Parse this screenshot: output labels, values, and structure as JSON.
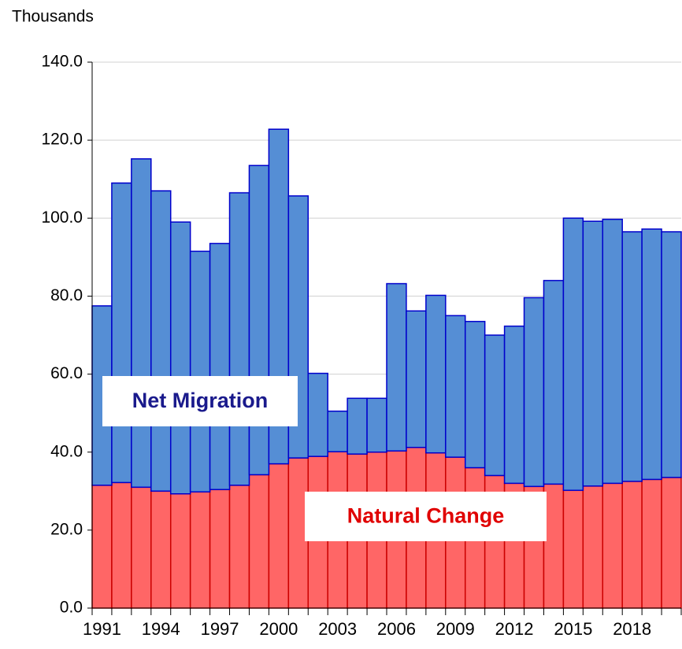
{
  "chart_data": {
    "type": "stacked_bar",
    "y_label": "Thousands",
    "categories": [
      "1991",
      null,
      null,
      "1994",
      null,
      null,
      "1997",
      null,
      null,
      "2000",
      null,
      null,
      "2003",
      null,
      null,
      "2006",
      null,
      null,
      "2009",
      null,
      null,
      "2012",
      null,
      null,
      "2015",
      null,
      null,
      "2018",
      null,
      null
    ],
    "series": [
      {
        "name": "Natural Change",
        "color": "#ff6666",
        "edge": "#cc0000",
        "label_color": "#e00000",
        "values": [
          31.5,
          32.2,
          31.0,
          30.0,
          29.3,
          29.8,
          30.4,
          31.5,
          34.2,
          37.0,
          38.5,
          38.9,
          40.1,
          39.5,
          40.0,
          40.3,
          41.2,
          39.8,
          38.7,
          36.0,
          34.0,
          32.0,
          31.2,
          31.8,
          30.2,
          31.3,
          32.0,
          32.5,
          33.0,
          33.5
        ]
      },
      {
        "name": "Net Migration",
        "color": "#558ed5",
        "edge": "#0000cc",
        "label_color": "#1a1a8c",
        "values": [
          46.0,
          76.8,
          84.2,
          77.0,
          69.7,
          61.7,
          63.1,
          75.0,
          79.3,
          85.8,
          67.2,
          21.3,
          10.4,
          14.3,
          13.8,
          42.9,
          35.0,
          40.4,
          36.3,
          37.5,
          36.0,
          40.3,
          48.4,
          52.2,
          69.8,
          67.9,
          67.7,
          64.0,
          64.2,
          63.0
        ]
      }
    ],
    "ylim": [
      0,
      140
    ],
    "yticks": [
      {
        "value": 0,
        "label": "0.0"
      },
      {
        "value": 20,
        "label": "20.0"
      },
      {
        "value": 40,
        "label": "40.0"
      },
      {
        "value": 60,
        "label": "60.0"
      },
      {
        "value": 80,
        "label": "80.0"
      },
      {
        "value": 100,
        "label": "100.0"
      },
      {
        "value": 120,
        "label": "120.0"
      },
      {
        "value": 140,
        "label": "140.0"
      }
    ],
    "grid": true
  }
}
